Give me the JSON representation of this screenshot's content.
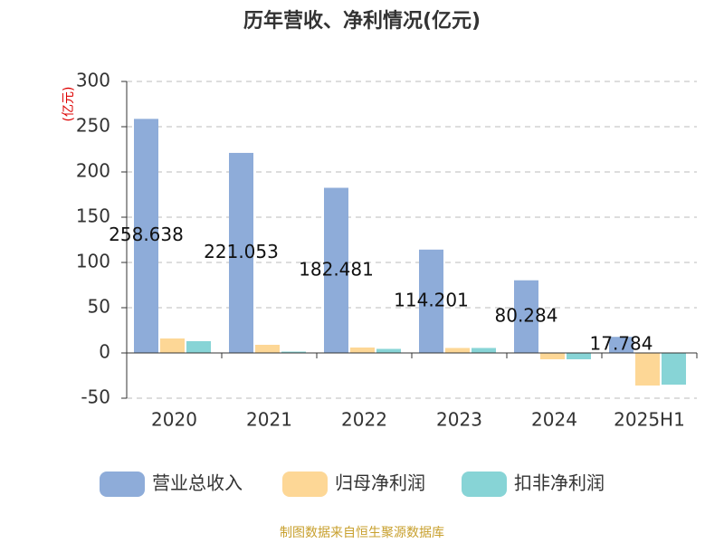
{
  "chart_data": {
    "type": "bar",
    "title": "历年营收、净利情况(亿元)",
    "y_label": "(亿元)",
    "source": "制图数据来自恒生聚源数据库",
    "categories": [
      "2020",
      "2021",
      "2022",
      "2023",
      "2024",
      "2025H1"
    ],
    "series": [
      {
        "name": "营业总收入",
        "color": "#8eacd9",
        "values": [
          258.638,
          221.053,
          182.481,
          114.201,
          80.284,
          17.784
        ],
        "show_labels": true
      },
      {
        "name": "归母净利润",
        "color": "#fdd796",
        "values": [
          16,
          9,
          6,
          5.5,
          -7,
          -36
        ]
      },
      {
        "name": "扣非净利润",
        "color": "#87d4d6",
        "values": [
          13,
          1.5,
          4.5,
          5.5,
          -7,
          -35
        ]
      }
    ],
    "ylim": [
      -50,
      300
    ],
    "yticks": [
      -50,
      0,
      50,
      100,
      150,
      200,
      250,
      300
    ],
    "grid": true
  }
}
